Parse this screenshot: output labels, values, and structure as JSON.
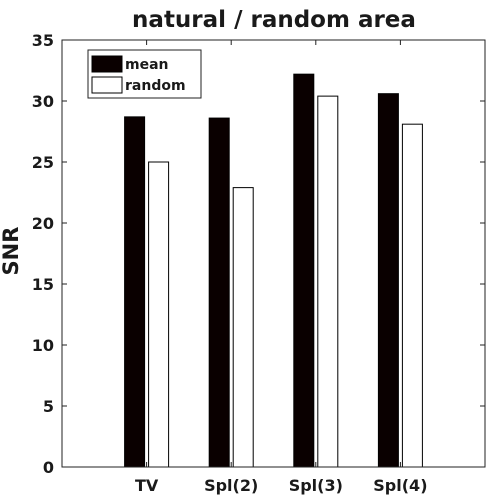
{
  "chart_data": {
    "type": "bar",
    "title": "natural / random area",
    "xlabel": "",
    "ylabel": "SNR",
    "categories": [
      "TV",
      "Spl(2)",
      "Spl(3)",
      "Spl(4)"
    ],
    "series": [
      {
        "name": "mean",
        "values": [
          28.7,
          28.6,
          32.2,
          30.6
        ],
        "color": "#0a0000"
      },
      {
        "name": "random",
        "values": [
          25.0,
          22.9,
          30.4,
          28.1
        ],
        "color": "#ffffff"
      }
    ],
    "ylim": [
      0,
      35
    ],
    "yticks": [
      "0",
      "5",
      "10",
      "15",
      "20",
      "25",
      "30",
      "35"
    ],
    "grid": false,
    "legend_position": "top-left"
  }
}
